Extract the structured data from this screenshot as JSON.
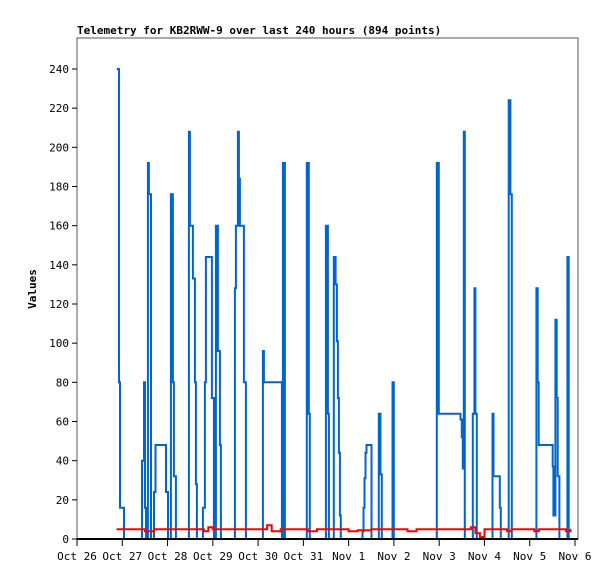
{
  "chart_data": {
    "type": "line",
    "title": "Telemetry for KB2RWW-9 over last 240 hours (894 points)",
    "xlabel": "",
    "ylabel": "Values",
    "ylim": [
      0,
      255
    ],
    "yticks": [
      0,
      20,
      40,
      60,
      80,
      100,
      120,
      140,
      160,
      180,
      200,
      220,
      240
    ],
    "xlim_days_since_oct26": [
      0,
      11
    ],
    "xtick_labels": [
      "Oct 26",
      "Oct 27",
      "Oct 28",
      "Oct 29",
      "Oct 30",
      "Oct 31",
      "Nov 1",
      "Nov 2",
      "Nov 3",
      "Nov 4",
      "Nov 5",
      "Nov 6"
    ],
    "grid": false,
    "series": [
      {
        "name": "blue",
        "color": "#0066cc",
        "step": "after",
        "points": [
          [
            0.883,
            240
          ],
          [
            0.927,
            80
          ],
          [
            0.949,
            16
          ],
          [
            1.038,
            0
          ],
          [
            1.435,
            40
          ],
          [
            1.479,
            80
          ],
          [
            1.501,
            16
          ],
          [
            1.523,
            0
          ],
          [
            1.567,
            192
          ],
          [
            1.589,
            176
          ],
          [
            1.634,
            0
          ],
          [
            1.7,
            24
          ],
          [
            1.733,
            48
          ],
          [
            1.965,
            24
          ],
          [
            2.009,
            0
          ],
          [
            2.075,
            176
          ],
          [
            2.119,
            80
          ],
          [
            2.141,
            32
          ],
          [
            2.185,
            0
          ],
          [
            2.472,
            208
          ],
          [
            2.494,
            160
          ],
          [
            2.561,
            133
          ],
          [
            2.605,
            80
          ],
          [
            2.627,
            28
          ],
          [
            2.649,
            0
          ],
          [
            2.781,
            16
          ],
          [
            2.826,
            80
          ],
          [
            2.848,
            144
          ],
          [
            2.98,
            72
          ],
          [
            3.024,
            0
          ],
          [
            3.068,
            160
          ],
          [
            3.113,
            96
          ],
          [
            3.135,
            96
          ],
          [
            3.157,
            48
          ],
          [
            3.179,
            0
          ],
          [
            3.488,
            128
          ],
          [
            3.51,
            160
          ],
          [
            3.554,
            208
          ],
          [
            3.576,
            184
          ],
          [
            3.598,
            160
          ],
          [
            3.687,
            80
          ],
          [
            3.731,
            0
          ],
          [
            4.106,
            96
          ],
          [
            4.128,
            80
          ],
          [
            4.503,
            80
          ],
          [
            4.525,
            0
          ],
          [
            4.547,
            192
          ],
          [
            4.592,
            0
          ],
          [
            5.077,
            192
          ],
          [
            5.121,
            64
          ],
          [
            5.143,
            0
          ],
          [
            5.497,
            160
          ],
          [
            5.519,
            160
          ],
          [
            5.541,
            64
          ],
          [
            5.563,
            0
          ],
          [
            5.673,
            144
          ],
          [
            5.711,
            130
          ],
          [
            5.74,
            101
          ],
          [
            5.762,
            72
          ],
          [
            5.784,
            44
          ],
          [
            5.806,
            12
          ],
          [
            5.828,
            0
          ],
          [
            6.307,
            4
          ],
          [
            6.329,
            16
          ],
          [
            6.351,
            31
          ],
          [
            6.373,
            44
          ],
          [
            6.395,
            48
          ],
          [
            6.506,
            0
          ],
          [
            6.667,
            64
          ],
          [
            6.704,
            33
          ],
          [
            6.733,
            0
          ],
          [
            6.969,
            80
          ],
          [
            6.998,
            0
          ],
          [
            7.947,
            192
          ],
          [
            7.991,
            64
          ],
          [
            8.47,
            61
          ],
          [
            8.499,
            52
          ],
          [
            8.521,
            36
          ],
          [
            8.543,
            208
          ],
          [
            8.565,
            0
          ],
          [
            8.742,
            64
          ],
          [
            8.779,
            128
          ],
          [
            8.801,
            64
          ],
          [
            8.83,
            0
          ],
          [
            9.177,
            64
          ],
          [
            9.199,
            32
          ],
          [
            9.338,
            16
          ],
          [
            9.36,
            0
          ],
          [
            9.536,
            224
          ],
          [
            9.574,
            176
          ],
          [
            9.603,
            0
          ],
          [
            10.148,
            128
          ],
          [
            10.177,
            80
          ],
          [
            10.199,
            48
          ],
          [
            10.508,
            37
          ],
          [
            10.523,
            12
          ],
          [
            10.567,
            112
          ],
          [
            10.596,
            72
          ],
          [
            10.618,
            32
          ],
          [
            10.656,
            0
          ],
          [
            10.832,
            144
          ],
          [
            10.861,
            0
          ]
        ]
      },
      {
        "name": "red",
        "color": "#ff0000",
        "step": "after",
        "points": [
          [
            0.88,
            5
          ],
          [
            1.5,
            4
          ],
          [
            1.7,
            5
          ],
          [
            2.8,
            4
          ],
          [
            2.9,
            6
          ],
          [
            3.0,
            5
          ],
          [
            4.2,
            7
          ],
          [
            4.3,
            4
          ],
          [
            4.5,
            5
          ],
          [
            5.1,
            4
          ],
          [
            5.3,
            5
          ],
          [
            6.0,
            4
          ],
          [
            6.2,
            4.5
          ],
          [
            6.5,
            5
          ],
          [
            7.3,
            4
          ],
          [
            7.5,
            5
          ],
          [
            8.7,
            6
          ],
          [
            8.8,
            3
          ],
          [
            8.9,
            1
          ],
          [
            9.0,
            5
          ],
          [
            9.5,
            4
          ],
          [
            9.6,
            5
          ],
          [
            10.1,
            4
          ],
          [
            10.2,
            5
          ],
          [
            10.8,
            4
          ],
          [
            10.9,
            5
          ]
        ]
      }
    ]
  }
}
